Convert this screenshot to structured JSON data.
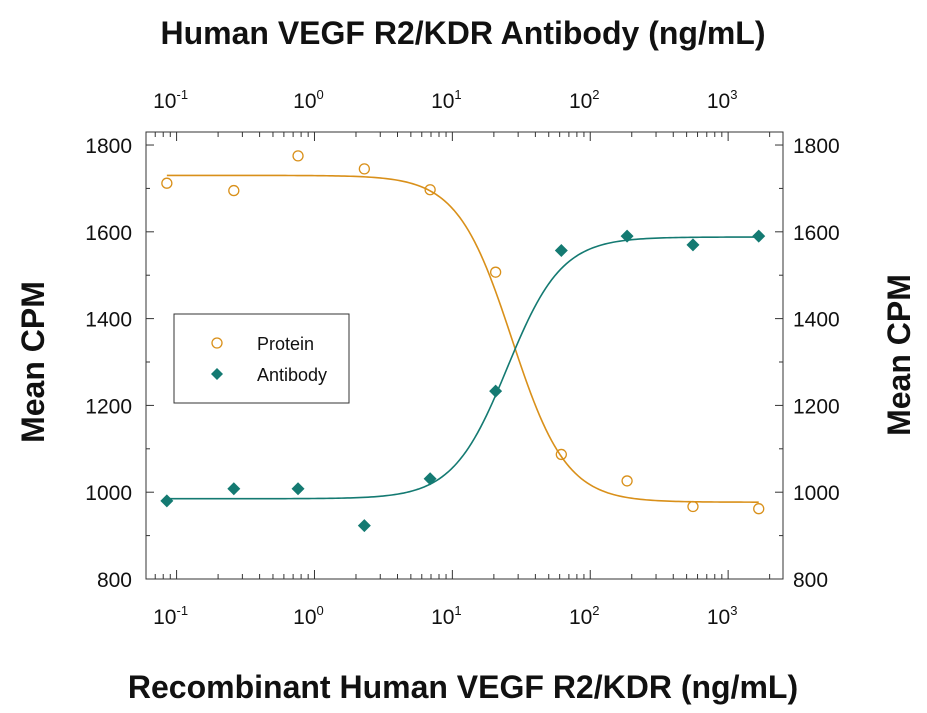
{
  "chart_data": {
    "type": "scatter",
    "title_top": "Human VEGF R2/KDR Antibody (ng/mL)",
    "xlabel": "Recombinant Human VEGF R2/KDR (ng/mL)",
    "ylabel_left": "Mean CPM",
    "ylabel_right": "Mean CPM",
    "x_scale": "log",
    "xlim": [
      0.06,
      2500
    ],
    "ylim": [
      800,
      1830
    ],
    "y_ticks": [
      800,
      1000,
      1200,
      1400,
      1600,
      1800
    ],
    "x_ticks": [
      {
        "value": 0.1,
        "base": "10",
        "exp": "-1"
      },
      {
        "value": 1,
        "base": "10",
        "exp": "0"
      },
      {
        "value": 10,
        "base": "10",
        "exp": "1"
      },
      {
        "value": 100,
        "base": "10",
        "exp": "2"
      },
      {
        "value": 1000,
        "base": "10",
        "exp": "3"
      }
    ],
    "legend": {
      "placement": "center-left"
    },
    "series": [
      {
        "name": "Protein",
        "marker": "open-circle",
        "color": "#D9901A",
        "x": [
          0.085,
          0.26,
          0.76,
          2.3,
          6.9,
          20.6,
          61.7,
          185,
          556,
          1667
        ],
        "y": [
          1712,
          1695,
          1775,
          1745,
          1697,
          1507,
          1087,
          1026,
          967,
          962
        ],
        "fit": {
          "model": "4PL",
          "top": 1730,
          "bottom": 977,
          "ec50": 27,
          "hill": 2.2
        }
      },
      {
        "name": "Antibody",
        "marker": "filled-diamond",
        "color": "#147A72",
        "x": [
          0.085,
          0.26,
          0.76,
          2.3,
          6.9,
          20.6,
          61.7,
          185,
          556,
          1667
        ],
        "y": [
          980,
          1008,
          1008,
          923,
          1031,
          1233,
          1557,
          1590,
          1570,
          1590
        ],
        "fit": {
          "model": "4PL",
          "top": 1588,
          "bottom": 985,
          "ec50": 25,
          "hill": 2.2
        }
      }
    ]
  }
}
